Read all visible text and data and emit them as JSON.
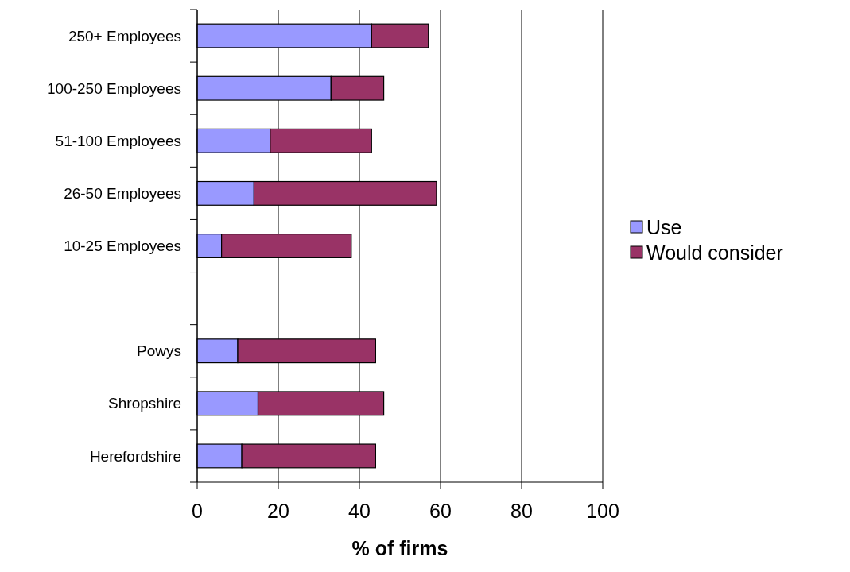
{
  "chart_data": {
    "type": "bar",
    "orientation": "horizontal",
    "stacked": true,
    "xlabel": "% of firms",
    "categories": [
      "250+ Employees",
      "100-250 Employees",
      "51-100 Employees",
      "26-50 Employees",
      "10-25 Employees",
      null,
      "Powys",
      "Shropshire",
      "Herefordshire"
    ],
    "series": [
      {
        "name": "Use",
        "color": "#9999ff",
        "values": [
          43,
          33,
          18,
          14,
          6,
          null,
          10,
          15,
          11
        ]
      },
      {
        "name": "Would consider",
        "color": "#993366",
        "values": [
          14,
          13,
          25,
          45,
          32,
          null,
          34,
          31,
          33
        ]
      }
    ],
    "xlim": [
      0,
      100
    ],
    "xticks": [
      0,
      20,
      40,
      60,
      80,
      100
    ],
    "grid": "x",
    "legend": "right"
  }
}
